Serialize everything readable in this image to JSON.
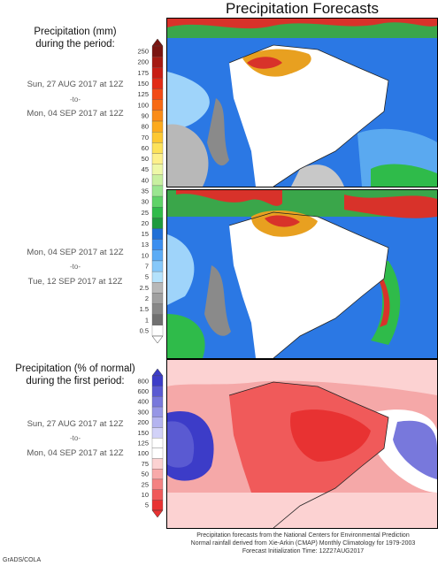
{
  "title": "Precipitation Forecasts",
  "section1": {
    "heading_line1": "Precipitation (mm)",
    "heading_line2": "during the period:",
    "periods": [
      {
        "start": "Sun, 27 AUG 2017 at 12Z",
        "sep": "-to-",
        "end": "Mon, 04 SEP 2017 at 12Z"
      },
      {
        "start": "Mon, 04 SEP 2017 at 12Z",
        "sep": "-to-",
        "end": "Tue, 12 SEP 2017 at 12Z"
      }
    ]
  },
  "section2": {
    "heading_line1": "Precipitation (% of normal)",
    "heading_line2": "during the first period:",
    "period": {
      "start": "Sun, 27 AUG 2017 at 12Z",
      "sep": "-to-",
      "end": "Mon, 04 SEP 2017 at 12Z"
    }
  },
  "colorbar_mm": {
    "levels": [
      "250",
      "200",
      "175",
      "150",
      "125",
      "100",
      "90",
      "80",
      "70",
      "60",
      "50",
      "45",
      "40",
      "35",
      "30",
      "25",
      "20",
      "15",
      "13",
      "10",
      "7",
      "5",
      "2.5",
      "2",
      "1.5",
      "1",
      "0.5"
    ],
    "colors": [
      "#7a1410",
      "#a51a12",
      "#c81e14",
      "#e22b16",
      "#f24a16",
      "#f86a14",
      "#fa8c18",
      "#fcaa1e",
      "#fdc832",
      "#fde25a",
      "#fdf08c",
      "#eef8a8",
      "#c8f0a0",
      "#9ae690",
      "#5fd368",
      "#2fbb4a",
      "#1e9a3e",
      "#1f6fd6",
      "#3a8ef0",
      "#5cacf6",
      "#86c8fa",
      "#b4e2fc",
      "#b8b8b8",
      "#a0a0a0",
      "#888888",
      "#707070",
      "#ffffff"
    ]
  },
  "colorbar_pct": {
    "levels": [
      "800",
      "600",
      "400",
      "300",
      "200",
      "150",
      "125",
      "100",
      "75",
      "50",
      "25",
      "10",
      "5"
    ],
    "colors": [
      "#3c3cc8",
      "#5a5ad2",
      "#7878dc",
      "#9696e6",
      "#b4b4f0",
      "#d2d2f8",
      "#ffffff",
      "#ffffff",
      "#fcd2d2",
      "#f8aaaa",
      "#f48282",
      "#f05a5a",
      "#e83232"
    ]
  },
  "footer": {
    "line1": "Precipitation forecasts from the National Centers for Environmental Prediction",
    "line2": "Normal rainfall derived from Xie-Arkin (CMAP) Monthly Climatology for 1979-2003",
    "line3": "Forecast Initialization Time: 12Z27AUG2017"
  },
  "credit": "GrADS/COLA"
}
